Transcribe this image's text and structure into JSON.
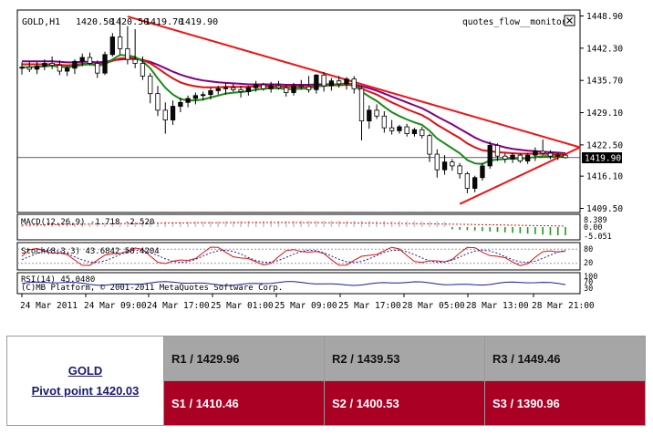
{
  "chart_data": {
    "type": "candlestick",
    "header": {
      "symbol": "GOLD,H1",
      "o": "1420.50",
      "h": "1420.50",
      "l": "1419.70",
      "c": "1419.90",
      "indicator_name": "quotes_flow__monitor2",
      "close_label": "1419.90"
    },
    "y_ticks": [
      "1448.90",
      "1442.30",
      "1435.70",
      "1429.10",
      "1422.50",
      "1416.10",
      "1409.50"
    ],
    "ylim": [
      1409.5,
      1448.9
    ],
    "x_ticks": [
      "24 Mar 2011",
      "24 Mar 09:00",
      "24 Mar 17:00",
      "25 Mar 01:00",
      "25 Mar 09:00",
      "25 Mar 17:00",
      "28 Mar 05:00",
      "28 Mar 13:00",
      "28 Mar 21:00"
    ],
    "candles": [
      [
        1438.2,
        1439.4,
        1436.9,
        1438.4
      ],
      [
        1438.4,
        1439.6,
        1437.4,
        1438.0
      ],
      [
        1438.0,
        1439.5,
        1437.0,
        1438.6
      ],
      [
        1438.6,
        1440.0,
        1437.8,
        1439.2
      ],
      [
        1439.2,
        1440.6,
        1438.0,
        1438.8
      ],
      [
        1438.8,
        1439.8,
        1436.8,
        1437.6
      ],
      [
        1437.6,
        1438.6,
        1436.6,
        1438.2
      ],
      [
        1438.2,
        1440.0,
        1437.0,
        1439.6
      ],
      [
        1439.6,
        1441.2,
        1438.6,
        1440.4
      ],
      [
        1440.4,
        1441.4,
        1438.8,
        1439.2
      ],
      [
        1439.2,
        1439.8,
        1436.2,
        1437.2
      ],
      [
        1437.2,
        1441.6,
        1436.8,
        1441.0
      ],
      [
        1441.0,
        1445.4,
        1440.6,
        1444.6
      ],
      [
        1444.6,
        1448.6,
        1441.0,
        1442.2
      ],
      [
        1442.2,
        1446.8,
        1439.0,
        1440.0
      ],
      [
        1440.0,
        1446.2,
        1438.2,
        1439.2
      ],
      [
        1439.2,
        1440.6,
        1435.8,
        1436.6
      ],
      [
        1436.6,
        1437.2,
        1431.0,
        1433.0
      ],
      [
        1433.0,
        1434.6,
        1428.4,
        1429.6
      ],
      [
        1429.6,
        1431.2,
        1424.8,
        1427.6
      ],
      [
        1427.6,
        1431.6,
        1426.6,
        1430.4
      ],
      [
        1430.4,
        1432.2,
        1429.2,
        1431.2
      ],
      [
        1431.2,
        1432.6,
        1430.2,
        1432.0
      ],
      [
        1432.0,
        1433.2,
        1430.8,
        1432.6
      ],
      [
        1432.6,
        1433.4,
        1431.6,
        1432.8
      ],
      [
        1432.8,
        1434.2,
        1431.8,
        1433.6
      ],
      [
        1433.6,
        1434.6,
        1432.8,
        1434.0
      ],
      [
        1434.0,
        1435.2,
        1432.8,
        1434.2
      ],
      [
        1434.2,
        1435.0,
        1433.4,
        1433.8
      ],
      [
        1433.8,
        1434.6,
        1432.2,
        1433.4
      ],
      [
        1433.4,
        1434.6,
        1432.6,
        1434.2
      ],
      [
        1434.2,
        1435.6,
        1433.4,
        1434.8
      ],
      [
        1434.8,
        1435.2,
        1433.6,
        1434.0
      ],
      [
        1434.0,
        1435.4,
        1433.2,
        1434.6
      ],
      [
        1434.6,
        1435.6,
        1433.8,
        1434.2
      ],
      [
        1434.2,
        1434.8,
        1432.4,
        1433.2
      ],
      [
        1433.2,
        1435.2,
        1432.6,
        1434.6
      ],
      [
        1434.6,
        1435.8,
        1433.8,
        1434.4
      ],
      [
        1434.4,
        1436.6,
        1433.2,
        1433.8
      ],
      [
        1433.8,
        1437.0,
        1433.0,
        1436.8
      ],
      [
        1436.8,
        1437.4,
        1433.4,
        1434.6
      ],
      [
        1434.6,
        1436.2,
        1433.6,
        1435.6
      ],
      [
        1435.6,
        1436.6,
        1434.2,
        1435.0
      ],
      [
        1435.0,
        1436.4,
        1433.8,
        1436.0
      ],
      [
        1436.0,
        1436.6,
        1433.0,
        1434.0
      ],
      [
        1434.0,
        1434.6,
        1423.4,
        1427.4
      ],
      [
        1427.4,
        1430.6,
        1425.8,
        1429.6
      ],
      [
        1429.6,
        1430.8,
        1427.8,
        1428.4
      ],
      [
        1428.4,
        1429.4,
        1425.0,
        1426.0
      ],
      [
        1426.0,
        1427.6,
        1424.6,
        1425.4
      ],
      [
        1425.4,
        1426.6,
        1424.8,
        1426.2
      ],
      [
        1426.2,
        1426.8,
        1424.2,
        1424.8
      ],
      [
        1424.8,
        1426.0,
        1424.2,
        1425.6
      ],
      [
        1425.6,
        1426.2,
        1423.8,
        1424.4
      ],
      [
        1424.4,
        1424.8,
        1419.0,
        1420.6
      ],
      [
        1420.6,
        1421.6,
        1415.8,
        1417.4
      ],
      [
        1417.4,
        1420.4,
        1416.4,
        1419.0
      ],
      [
        1419.0,
        1419.6,
        1417.2,
        1418.2
      ],
      [
        1418.2,
        1418.8,
        1415.6,
        1416.6
      ],
      [
        1416.6,
        1417.0,
        1412.6,
        1413.6
      ],
      [
        1413.6,
        1416.2,
        1412.8,
        1415.8
      ],
      [
        1415.8,
        1418.8,
        1415.2,
        1418.2
      ],
      [
        1418.2,
        1423.2,
        1417.6,
        1422.4
      ],
      [
        1422.4,
        1422.8,
        1419.2,
        1420.2
      ],
      [
        1420.2,
        1420.8,
        1418.8,
        1419.6
      ],
      [
        1419.6,
        1420.8,
        1418.8,
        1420.4
      ],
      [
        1420.4,
        1420.8,
        1418.8,
        1419.2
      ],
      [
        1419.2,
        1420.8,
        1418.6,
        1420.4
      ],
      [
        1420.4,
        1422.0,
        1419.2,
        1421.2
      ],
      [
        1421.2,
        1423.6,
        1420.4,
        1420.8
      ],
      [
        1420.8,
        1421.4,
        1419.6,
        1420.2
      ],
      [
        1420.2,
        1420.8,
        1419.4,
        1420.4
      ],
      [
        1420.4,
        1420.5,
        1419.7,
        1419.9
      ]
    ],
    "ma_green": [
      1438.4,
      1438.4,
      1438.5,
      1438.6,
      1438.7,
      1438.5,
      1438.4,
      1438.6,
      1438.9,
      1439.0,
      1438.7,
      1439.0,
      1440.0,
      1440.9,
      1440.8,
      1440.5,
      1439.6,
      1438.2,
      1436.1,
      1434.2,
      1432.8,
      1431.9,
      1431.6,
      1431.6,
      1431.8,
      1432.2,
      1432.6,
      1433.0,
      1433.2,
      1433.3,
      1433.5,
      1433.8,
      1434.0,
      1434.1,
      1434.1,
      1433.9,
      1433.9,
      1434.0,
      1434.0,
      1434.5,
      1434.6,
      1434.9,
      1434.9,
      1435.1,
      1434.9,
      1433.4,
      1432.4,
      1431.5,
      1430.3,
      1429.2,
      1428.4,
      1427.7,
      1427.1,
      1426.6,
      1425.4,
      1423.8,
      1422.8,
      1421.8,
      1420.8,
      1419.4,
      1418.7,
      1418.6,
      1419.3,
      1419.5,
      1419.6,
      1419.7,
      1419.6,
      1419.8,
      1420.0,
      1420.2,
      1420.2,
      1420.2,
      1420.1
    ],
    "ma_red": [
      1439.0,
      1439.0,
      1439.0,
      1439.0,
      1439.0,
      1438.9,
      1438.8,
      1438.9,
      1439.1,
      1439.1,
      1439.0,
      1439.2,
      1439.7,
      1440.2,
      1440.3,
      1440.3,
      1439.9,
      1439.2,
      1438.2,
      1437.1,
      1436.1,
      1435.3,
      1434.8,
      1434.5,
      1434.3,
      1434.3,
      1434.3,
      1434.4,
      1434.4,
      1434.4,
      1434.4,
      1434.5,
      1434.5,
      1434.5,
      1434.5,
      1434.4,
      1434.4,
      1434.4,
      1434.4,
      1434.6,
      1434.6,
      1434.7,
      1434.7,
      1434.8,
      1434.7,
      1434.0,
      1433.4,
      1432.8,
      1432.0,
      1431.2,
      1430.5,
      1429.8,
      1429.2,
      1428.6,
      1427.7,
      1426.6,
      1425.7,
      1424.8,
      1423.9,
      1422.8,
      1422.0,
      1421.4,
      1421.2,
      1421.0,
      1420.9,
      1420.8,
      1420.7,
      1420.7,
      1420.7,
      1420.7,
      1420.6,
      1420.6,
      1420.6
    ],
    "ma_purple": [
      1439.6,
      1439.6,
      1439.6,
      1439.6,
      1439.6,
      1439.5,
      1439.4,
      1439.4,
      1439.5,
      1439.5,
      1439.4,
      1439.5,
      1439.8,
      1440.0,
      1440.1,
      1440.1,
      1439.9,
      1439.5,
      1438.9,
      1438.2,
      1437.5,
      1436.9,
      1436.4,
      1436.0,
      1435.7,
      1435.5,
      1435.3,
      1435.2,
      1435.1,
      1435.0,
      1434.9,
      1434.9,
      1434.9,
      1434.9,
      1434.9,
      1434.8,
      1434.8,
      1434.8,
      1434.8,
      1434.9,
      1434.9,
      1434.9,
      1434.9,
      1435.0,
      1434.9,
      1434.5,
      1434.1,
      1433.6,
      1433.0,
      1432.4,
      1431.8,
      1431.2,
      1430.6,
      1430.0,
      1429.2,
      1428.3,
      1427.5,
      1426.7,
      1425.8,
      1424.9,
      1424.0,
      1423.3,
      1422.8,
      1422.4,
      1422.0,
      1421.7,
      1421.5,
      1421.3,
      1421.2,
      1421.1,
      1421.0,
      1420.9,
      1420.8
    ],
    "trendlines": [
      {
        "from": [
          14,
          1448.8
        ],
        "to": [
          72,
          1422.0
        ]
      },
      {
        "from": [
          58,
          1410.4
        ],
        "to": [
          72,
          1422.0
        ]
      }
    ],
    "close_price": 1419.9,
    "macd": {
      "label": "MACD(12,26,9) -1.718 -2.520",
      "ticks": [
        "8.389",
        "0.00",
        "-5.051"
      ]
    },
    "stoch": {
      "label": "Stoch(8,3,3) 43.6842 58.4204",
      "ticks": [
        "80",
        "20"
      ]
    },
    "rsi": {
      "label": "RSI(14) 45.0480",
      "ticks": [
        "100",
        "70",
        "30"
      ]
    },
    "copyright": "(C)MB Platform, © 2001-2011 MetaQuotes Software Corp."
  },
  "pivot": {
    "symbol": "GOLD",
    "pivot_text": "Pivot point 1420.03",
    "r1": "R1 / 1429.96",
    "r2": "R2 / 1439.53",
    "r3": "R3 / 1449.46",
    "s1": "S1 / 1410.46",
    "s2": "S2 / 1400.53",
    "s3": "S3 / 1390.96"
  },
  "colors": {
    "bull": "#0a0a0a",
    "bear": "#ffffff",
    "ma_green": "#1a8a1a",
    "ma_red": "#e01010",
    "ma_purple": "#800080",
    "trend": "#f01414",
    "r_bg": "#a6a6a6",
    "s_bg": "#a90024"
  }
}
